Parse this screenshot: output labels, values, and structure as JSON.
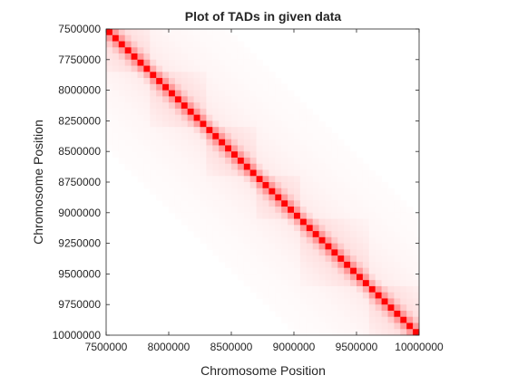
{
  "chart_data": {
    "type": "heatmap",
    "title": "Plot of TADs in given data",
    "xlabel": "Chromosome Position",
    "ylabel": "Chromosome Position",
    "xlim": [
      7500000,
      10000000
    ],
    "ylim": [
      7500000,
      10000000
    ],
    "y_direction": "reversed",
    "bin_size": 50000,
    "colormap": {
      "low": "#ffffff",
      "high": "#ff0000"
    },
    "x_ticks": [
      "7500000",
      "8000000",
      "8500000",
      "9000000",
      "9500000",
      "10000000"
    ],
    "y_ticks": [
      "7500000",
      "7750000",
      "8000000",
      "8250000",
      "8500000",
      "8750000",
      "9000000",
      "9250000",
      "9500000",
      "9750000",
      "10000000"
    ],
    "tads": [
      {
        "start": 7500000,
        "end": 7850000
      },
      {
        "start": 7850000,
        "end": 8300000
      },
      {
        "start": 8300000,
        "end": 8700000
      },
      {
        "start": 8700000,
        "end": 9050000
      },
      {
        "start": 9050000,
        "end": 9600000
      },
      {
        "start": 9600000,
        "end": 10000000
      }
    ]
  }
}
